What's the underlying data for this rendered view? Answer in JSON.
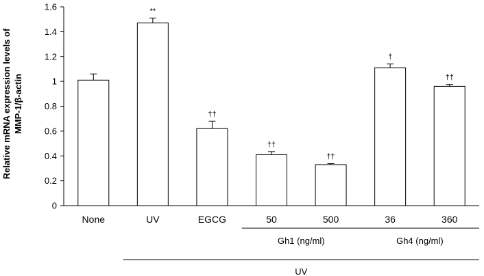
{
  "chart_data": {
    "type": "bar",
    "title": "",
    "ylabel_line1": "Relative mRNA expression levels of",
    "ylabel_line2": "MMP-1/β-actin",
    "ylim": [
      0,
      1.6
    ],
    "yticks": [
      "0",
      "0.2",
      "0.4",
      "0.6",
      "0.8",
      "1",
      "1.2",
      "1.4",
      "1.6"
    ],
    "grid": false,
    "categories": [
      "None",
      "UV",
      "EGCG",
      "50",
      "500",
      "36",
      "360"
    ],
    "values": [
      1.01,
      1.47,
      0.62,
      0.41,
      0.33,
      1.11,
      0.96
    ],
    "errors": [
      0.05,
      0.04,
      0.06,
      0.025,
      0.008,
      0.03,
      0.015
    ],
    "annotations": [
      "",
      "**",
      "††",
      "††",
      "††",
      "†",
      "††"
    ],
    "groups": [
      {
        "label": "Gh1 (ng/ml)",
        "categories": [
          "50",
          "500"
        ]
      },
      {
        "label": "Gh4 (ng/ml)",
        "categories": [
          "36",
          "360"
        ]
      },
      {
        "label": "UV",
        "categories": [
          "UV",
          "EGCG",
          "50",
          "500",
          "36",
          "360"
        ]
      }
    ]
  }
}
